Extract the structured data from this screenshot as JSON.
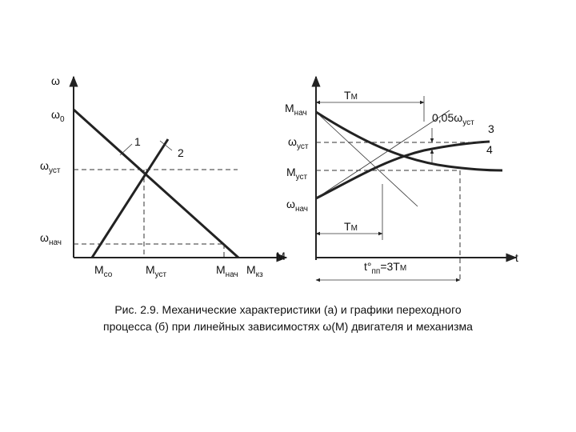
{
  "left_plot": {
    "labels": [
      {
        "text": "ω"
      },
      {
        "text": "ω",
        "subscript": "0"
      },
      {
        "text": "1"
      },
      {
        "text": "2"
      },
      {
        "text": "ω",
        "subscript": "уст"
      },
      {
        "text": "ω",
        "subscript": "нач"
      },
      {
        "text": "M",
        "subscript": "со"
      },
      {
        "text": "M",
        "subscript": "уст"
      },
      {
        "text": "M",
        "subscript": "нач"
      },
      {
        "text": "M",
        "subscript": "кз"
      },
      {
        "text": "M"
      }
    ]
  },
  "right_plot": {
    "labels": [
      {
        "text": "M",
        "subscript": "нач"
      },
      {
        "text": "T",
        "subscript": "M"
      },
      {
        "text": "0,05ω",
        "subscript": "уст"
      },
      {
        "text": "3"
      },
      {
        "text": "4"
      },
      {
        "text": "ω",
        "subscript": "уст"
      },
      {
        "text": "M",
        "subscript": "уст"
      },
      {
        "text": "ω",
        "subscript": "нач"
      },
      {
        "text": "T",
        "subscript": "M"
      },
      {
        "text": "t°",
        "subscript": "пп",
        "suffix": "=3T",
        "suffix_subscript": "M"
      },
      {
        "text": "t"
      }
    ]
  },
  "caption": [
    "Рис. 2.9. Механические характеристики (а) и графики переходного",
    "процесса (б) при линейных зависимостях ω(М) двигателя и механизма"
  ]
}
